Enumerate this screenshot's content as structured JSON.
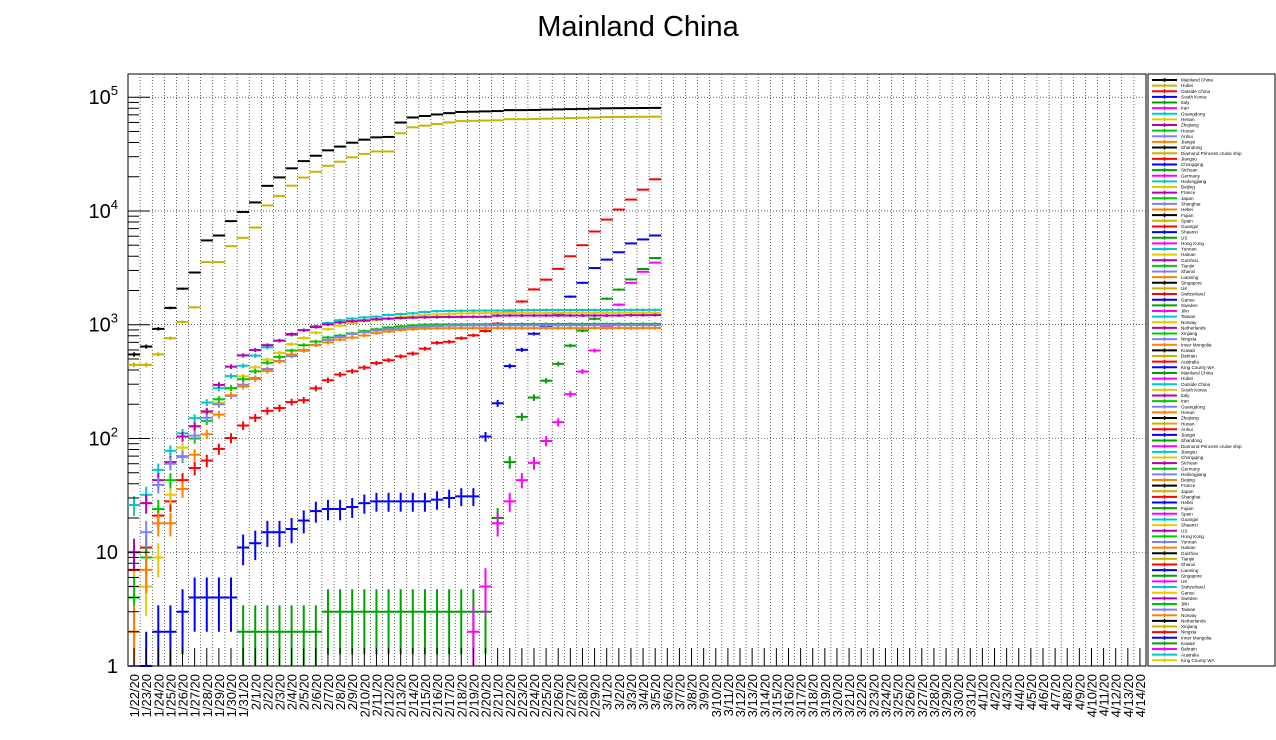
{
  "chart_data": {
    "type": "scatter",
    "title": "Mainland China",
    "xlabel": "",
    "ylabel": "",
    "y_scale": "log",
    "ylim": [
      1,
      160000
    ],
    "y_ticks": [
      {
        "value": 1,
        "base": "1",
        "exp": ""
      },
      {
        "value": 10,
        "base": "10",
        "exp": ""
      },
      {
        "value": 100,
        "base": "10",
        "exp": "2"
      },
      {
        "value": 1000,
        "base": "10",
        "exp": "3"
      },
      {
        "value": 10000,
        "base": "10",
        "exp": "4"
      },
      {
        "value": 100000,
        "base": "10",
        "exp": "5"
      }
    ],
    "grid": true,
    "legend_position": "right",
    "categories": [
      "1/22/20",
      "1/23/20",
      "1/24/20",
      "1/25/20",
      "1/26/20",
      "1/27/20",
      "1/28/20",
      "1/29/20",
      "1/30/20",
      "1/31/20",
      "2/1/20",
      "2/2/20",
      "2/3/20",
      "2/4/20",
      "2/5/20",
      "2/6/20",
      "2/7/20",
      "2/8/20",
      "2/9/20",
      "2/10/20",
      "2/11/20",
      "2/12/20",
      "2/13/20",
      "2/14/20",
      "2/15/20",
      "2/16/20",
      "2/17/20",
      "2/18/20",
      "2/19/20",
      "2/20/20",
      "2/21/20",
      "2/22/20",
      "2/23/20",
      "2/24/20",
      "2/25/20",
      "2/26/20",
      "2/27/20",
      "2/28/20",
      "2/29/20",
      "3/1/20",
      "3/2/20",
      "3/3/20",
      "3/4/20",
      "3/5/20",
      "3/6/20",
      "3/7/20",
      "3/8/20",
      "3/9/20",
      "3/10/20",
      "3/11/20",
      "3/12/20",
      "3/13/20",
      "3/14/20",
      "3/15/20",
      "3/16/20",
      "3/17/20",
      "3/18/20",
      "3/19/20",
      "3/20/20",
      "3/21/20",
      "3/22/20",
      "3/23/20",
      "3/24/20",
      "3/25/20",
      "3/26/20",
      "3/27/20",
      "3/28/20",
      "3/29/20",
      "3/30/20",
      "3/31/20",
      "4/1/20",
      "4/2/20",
      "4/3/20",
      "4/4/20",
      "4/5/20",
      "4/6/20",
      "4/7/20",
      "4/8/20",
      "4/9/20",
      "4/10/20",
      "4/11/20",
      "4/12/20",
      "4/13/20",
      "4/14/20"
    ],
    "legend_entries": [
      "Mainland China",
      "Hubei",
      "Outside China",
      "South Korea",
      "Italy",
      "Iran",
      "Guangdong",
      "Henan",
      "Zhejiang",
      "Hunan",
      "Anhui",
      "Jiangxi",
      "Shandong",
      "Diamond Princess cruise ship",
      "Jiangsu",
      "Chongqing",
      "Sichuan",
      "Germany",
      "Heilongjiang",
      "Beijing",
      "France",
      "Japan",
      "Shanghai",
      "Hebei",
      "Fujian",
      "Spain",
      "Guangxi",
      "Shaanxi",
      "US",
      "Hong Kong",
      "Yunnan",
      "Hainan",
      "Guizhou",
      "Tianjin",
      "Shanxi",
      "Liaoning",
      "Singapore",
      "UK",
      "Switzerland",
      "Gansu",
      "Sweden",
      "Jilin",
      "Taiwan",
      "Norway",
      "Netherlands",
      "Xinjiang",
      "Ningxia",
      "Inner Mongolia",
      "Kuwait",
      "Bahrain",
      "Australia",
      "King County WA",
      "Mainland China",
      "Hubei",
      "Outside China",
      "South Korea",
      "Italy",
      "Iran",
      "Guangdong",
      "Henan",
      "Zhejiang",
      "Hunan",
      "Anhui",
      "Jiangxi",
      "Shandong",
      "Diamond Princess cruise ship",
      "Jiangsu",
      "Chongqing",
      "Sichuan",
      "Germany",
      "Heilongjiang",
      "Beijing",
      "France",
      "Japan",
      "Shanghai",
      "Hebei",
      "Fujian",
      "Spain",
      "Guangxi",
      "Shaanxi",
      "US",
      "Hong Kong",
      "Yunnan",
      "Hainan",
      "Guizhou",
      "Tianjin",
      "Shanxi",
      "Liaoning",
      "Singapore",
      "UK",
      "Switzerland",
      "Gansu",
      "Sweden",
      "Jilin",
      "Taiwan",
      "Norway",
      "Netherlands",
      "Xinjiang",
      "Ningxia",
      "Inner Mongolia",
      "Kuwait",
      "Bahrain",
      "Australia",
      "King County WA"
    ],
    "palette": [
      "#000000",
      "#c8b400",
      "#ff0000",
      "#0000ff",
      "#00a000",
      "#ff00ff",
      "#00c8c8",
      "#e6c800",
      "#b400b4",
      "#00c800",
      "#8080ff",
      "#ff8000"
    ],
    "series": [
      {
        "name": "Mainland China",
        "color": "#000000",
        "values": [
          548,
          643,
          920,
          1406,
          2075,
          2877,
          5509,
          6087,
          8141,
          9802,
          11891,
          16630,
          19716,
          23707,
          27440,
          30587,
          34110,
          36814,
          39829,
          42354,
          44386,
          44759,
          59895,
          66358,
          68413,
          70513,
          72434,
          74211,
          74619,
          75077,
          75550,
          77001,
          77022,
          77241,
          77754,
          78166,
          78600,
          78928,
          79356,
          79932,
          80136,
          80261,
          80386,
          80537
        ]
      },
      {
        "name": "Hubei",
        "color": "#c8b400",
        "values": [
          444,
          444,
          549,
          761,
          1058,
          1423,
          3554,
          3554,
          4903,
          5806,
          7153,
          11177,
          13522,
          16678,
          19665,
          22112,
          24953,
          27100,
          29631,
          31728,
          33366,
          33366,
          48206,
          54406,
          56249,
          58182,
          59989,
          61682,
          62031,
          62442,
          62662,
          64084,
          64084,
          64287,
          64786,
          65187,
          65596,
          65914,
          66337,
          66907,
          67103,
          67217,
          67332,
          67466
        ]
      },
      {
        "name": "Outside China",
        "color": "#ff0000",
        "values": [
          7,
          11,
          21,
          28,
          43,
          55,
          64,
          81,
          101,
          130,
          152,
          175,
          185,
          209,
          217,
          276,
          325,
          365,
          390,
          420,
          460,
          487,
          527,
          558,
          616,
          693,
          708,
          761,
          807,
          881,
          1023,
          1277,
          1600,
          2044,
          2487,
          3097,
          4000,
          5000,
          6600,
          8400,
          10300,
          12600,
          15400,
          19000
        ]
      },
      {
        "name": "South Korea",
        "color": "#0000ff",
        "values": [
          1,
          1,
          2,
          2,
          3,
          4,
          4,
          4,
          4,
          11,
          12,
          15,
          15,
          16,
          19,
          23,
          24,
          24,
          25,
          27,
          28,
          28,
          28,
          28,
          28,
          29,
          30,
          31,
          31,
          104,
          204,
          433,
          602,
          833,
          977,
          1261,
          1766,
          2337,
          3150,
          3736,
          4335,
          5186,
          5621,
          6088
        ]
      },
      {
        "name": "Italy",
        "color": "#00a000",
        "values": [
          0,
          0,
          0,
          0,
          0,
          0,
          0,
          0,
          0,
          2,
          2,
          2,
          2,
          2,
          2,
          2,
          3,
          3,
          3,
          3,
          3,
          3,
          3,
          3,
          3,
          3,
          3,
          3,
          3,
          3,
          20,
          62,
          155,
          229,
          322,
          453,
          655,
          888,
          1128,
          1694,
          2036,
          2502,
          3089,
          3858
        ]
      },
      {
        "name": "Iran",
        "color": "#ff00ff",
        "values": [
          0,
          0,
          0,
          0,
          0,
          0,
          0,
          0,
          0,
          0,
          0,
          0,
          0,
          0,
          0,
          0,
          0,
          0,
          0,
          0,
          0,
          0,
          0,
          0,
          0,
          0,
          0,
          0,
          2,
          5,
          18,
          28,
          43,
          61,
          95,
          139,
          245,
          388,
          593,
          978,
          1501,
          2336,
          2922,
          3513
        ]
      },
      {
        "name": "Guangdong",
        "color": "#00c8c8",
        "values": [
          26,
          32,
          53,
          78,
          111,
          151,
          207,
          277,
          354,
          436,
          535,
          632,
          725,
          813,
          895,
          970,
          1034,
          1095,
          1131,
          1159,
          1177,
          1219,
          1241,
          1261,
          1294,
          1316,
          1322,
          1328,
          1331,
          1332,
          1333,
          1339,
          1342,
          1345,
          1347,
          1347,
          1347,
          1348,
          1349,
          1349,
          1350,
          1350,
          1350,
          1351
        ]
      },
      {
        "name": "Henan",
        "color": "#e6c800",
        "values": [
          5,
          5,
          9,
          32,
          83,
          128,
          168,
          206,
          278,
          352,
          422,
          493,
          566,
          675,
          764,
          851,
          914,
          981,
          1033,
          1073,
          1105,
          1135,
          1169,
          1184,
          1212,
          1231,
          1246,
          1257,
          1262,
          1265,
          1267,
          1270,
          1271,
          1271,
          1271,
          1271,
          1272,
          1272,
          1272,
          1272,
          1272,
          1272,
          1272,
          1272
        ]
      },
      {
        "name": "Zhejiang",
        "color": "#b400b4",
        "values": [
          10,
          27,
          43,
          62,
          104,
          128,
          173,
          296,
          428,
          538,
          599,
          661,
          724,
          829,
          895,
          954,
          1006,
          1048,
          1075,
          1092,
          1117,
          1131,
          1145,
          1155,
          1162,
          1167,
          1171,
          1172,
          1174,
          1175,
          1203,
          1205,
          1205,
          1205,
          1205,
          1205,
          1205,
          1205,
          1205,
          1205,
          1206,
          1213,
          1213,
          1215
        ]
      },
      {
        "name": "Hunan",
        "color": "#00c800",
        "values": [
          4,
          9,
          24,
          43,
          69,
          100,
          143,
          221,
          277,
          332,
          389,
          463,
          521,
          593,
          661,
          711,
          772,
          803,
          838,
          879,
          912,
          946,
          968,
          988,
          1001,
          1004,
          1006,
          1007,
          1008,
          1010,
          1011,
          1013,
          1016,
          1016,
          1016,
          1016,
          1017,
          1017,
          1018,
          1018,
          1018,
          1018,
          1018,
          1018
        ]
      },
      {
        "name": "Anhui",
        "color": "#8080ff",
        "values": [
          1,
          15,
          39,
          60,
          70,
          106,
          152,
          200,
          237,
          297,
          340,
          408,
          480,
          530,
          591,
          665,
          733,
          779,
          830,
          860,
          889,
          910,
          934,
          950,
          962,
          973,
          982,
          986,
          987,
          988,
          989,
          989,
          989,
          989,
          989,
          989,
          989,
          990,
          990,
          990,
          990,
          990,
          990,
          990
        ]
      },
      {
        "name": "Jiangxi",
        "color": "#ff8000",
        "values": [
          2,
          7,
          18,
          18,
          36,
          72,
          109,
          162,
          240,
          286,
          333,
          391,
          476,
          548,
          600,
          661,
          698,
          740,
          771,
          804,
          844,
          872,
          900,
          913,
          925,
          930,
          933,
          934,
          934,
          934,
          934,
          934,
          934,
          934,
          934,
          934,
          934,
          934,
          935,
          935,
          935,
          935,
          935,
          935
        ]
      }
    ]
  }
}
